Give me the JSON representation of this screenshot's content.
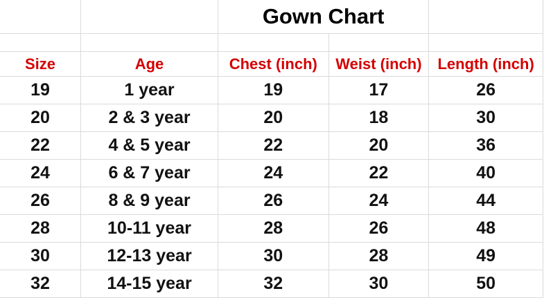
{
  "title": "Gown Chart",
  "headers": [
    "Size",
    "Age",
    "Chest (inch)",
    "Weist (inch)",
    "Length (inch)"
  ],
  "header_color": "#d40000",
  "rows": [
    [
      "19",
      "1 year",
      "19",
      "17",
      "26"
    ],
    [
      "20",
      "2 & 3 year",
      "20",
      "18",
      "30"
    ],
    [
      "22",
      "4 & 5 year",
      "22",
      "20",
      "36"
    ],
    [
      "24",
      "6 & 7 year",
      "24",
      "22",
      "40"
    ],
    [
      "26",
      "8 & 9 year",
      "26",
      "24",
      "44"
    ],
    [
      "28",
      "10-11 year",
      "28",
      "26",
      "48"
    ],
    [
      "30",
      "12-13 year",
      "30",
      "28",
      "49"
    ],
    [
      "32",
      "14-15 year",
      "32",
      "30",
      "50"
    ]
  ]
}
